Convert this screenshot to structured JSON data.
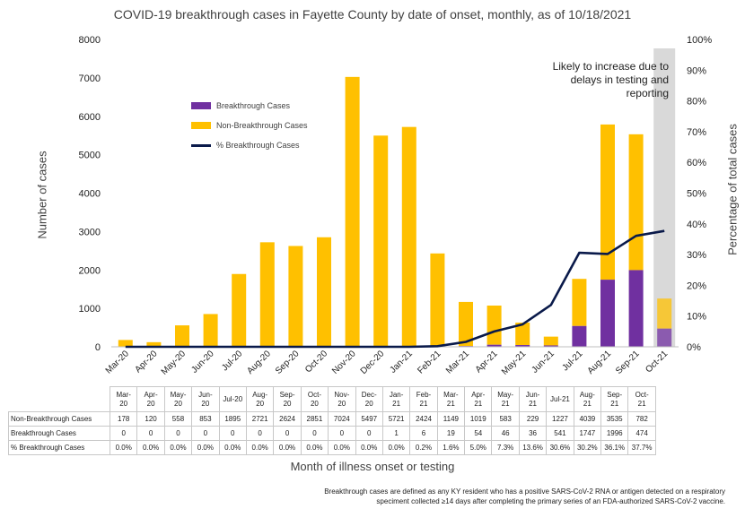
{
  "chart_data": {
    "type": "bar",
    "title": "COVID-19 breakthrough cases in Fayette County by date of onset, monthly, as of 10/18/2021",
    "xlabel": "Month of illness onset or testing",
    "ylabel": "Number of cases",
    "y2label": "Percentage of total cases",
    "ylim": [
      0,
      8000
    ],
    "y2lim": [
      0,
      100
    ],
    "yticks": [
      "0",
      "1000",
      "2000",
      "3000",
      "4000",
      "5000",
      "6000",
      "7000",
      "8000"
    ],
    "y2ticks": [
      "0%",
      "10%",
      "20%",
      "30%",
      "40%",
      "50%",
      "60%",
      "70%",
      "80%",
      "90%",
      "100%"
    ],
    "categories": [
      "Mar-20",
      "Apr-20",
      "May-20",
      "Jun-20",
      "Jul-20",
      "Aug-20",
      "Sep-20",
      "Oct-20",
      "Nov-20",
      "Dec-20",
      "Jan-21",
      "Feb-21",
      "Mar-21",
      "Apr-21",
      "May-21",
      "Jun-21",
      "Jul-21",
      "Aug-21",
      "Sep-21",
      "Oct-21"
    ],
    "table_headers": [
      "Mar-20",
      "Apr-20",
      "May-20",
      "Jun-20",
      "Jul-20",
      "Aug-20",
      "Sep-20",
      "Oct-20",
      "Nov-20",
      "Dec-20",
      "Jan-21",
      "Feb-21",
      "Mar-21",
      "Apr-21",
      "May-21",
      "Jun-21",
      "Jul-21",
      "Aug-21",
      "Sep-21",
      "Oct-21"
    ],
    "series": [
      {
        "name": "Breakthrough Cases",
        "type": "bar-stacked",
        "color": "#7030a0",
        "values": [
          0,
          0,
          0,
          0,
          0,
          0,
          0,
          0,
          0,
          0,
          1,
          6,
          19,
          54,
          46,
          36,
          541,
          1747,
          1996,
          474
        ]
      },
      {
        "name": "Non-Breakthrough Cases",
        "type": "bar-stacked",
        "color": "#ffc000",
        "values": [
          178,
          120,
          558,
          853,
          1895,
          2721,
          2624,
          2851,
          7024,
          5497,
          5721,
          2424,
          1149,
          1019,
          583,
          229,
          1227,
          4039,
          3535,
          782
        ]
      },
      {
        "name": "% Breakthrough Cases",
        "type": "line",
        "axis": "right",
        "color": "#0a1a4a",
        "values": [
          0.0,
          0.0,
          0.0,
          0.0,
          0.0,
          0.0,
          0.0,
          0.0,
          0.0,
          0.0,
          0.0,
          0.2,
          1.6,
          5.0,
          7.3,
          13.6,
          30.6,
          30.2,
          36.1,
          37.7
        ]
      }
    ],
    "table_rows": [
      {
        "label": "Non-Breakthrough Cases",
        "values": [
          "178",
          "120",
          "558",
          "853",
          "1895",
          "2721",
          "2624",
          "2851",
          "7024",
          "5497",
          "5721",
          "2424",
          "1149",
          "1019",
          "583",
          "229",
          "1227",
          "4039",
          "3535",
          "782"
        ]
      },
      {
        "label": "Breakthrough Cases",
        "values": [
          "0",
          "0",
          "0",
          "0",
          "0",
          "0",
          "0",
          "0",
          "0",
          "0",
          "1",
          "6",
          "19",
          "54",
          "46",
          "36",
          "541",
          "1747",
          "1996",
          "474"
        ]
      },
      {
        "label": "% Breakthrough Cases",
        "values": [
          "0.0%",
          "0.0%",
          "0.0%",
          "0.0%",
          "0.0%",
          "0.0%",
          "0.0%",
          "0.0%",
          "0.0%",
          "0.0%",
          "0.0%",
          "0.2%",
          "1.6%",
          "5.0%",
          "7.3%",
          "13.6%",
          "30.6%",
          "30.2%",
          "36.1%",
          "37.7%"
        ]
      }
    ],
    "highlight_last_category": true,
    "highlight_color": "#d9d9d9",
    "legend_position": "upper-left",
    "grid": false
  },
  "annotation": "Likely to increase due to delays in testing and reporting",
  "footnote": "Breakthrough cases are defined as any KY resident who has a positive SARS-CoV-2 RNA or antigen detected on a respiratory speciment collected ≥14 days after completing the primary series of an FDA-authorized SARS-CoV-2 vaccine."
}
